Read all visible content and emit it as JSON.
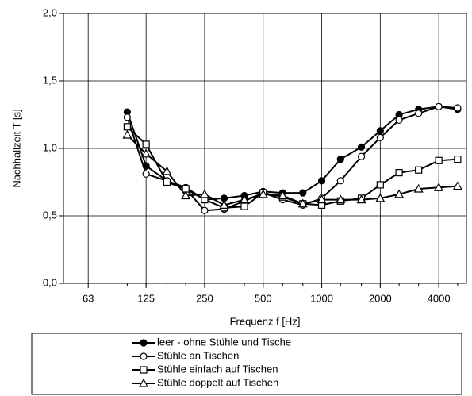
{
  "chart_data": {
    "type": "line",
    "ylabel": "Nachhallzeit T [s]",
    "xlabel": "Frequenz f [Hz]",
    "x": [
      100,
      125,
      160,
      200,
      250,
      315,
      400,
      500,
      630,
      800,
      1000,
      1250,
      1600,
      2000,
      2500,
      3150,
      4000,
      5000
    ],
    "xscale": "log",
    "xlim": [
      47,
      5550
    ],
    "xticks": [
      63,
      125,
      250,
      500,
      1000,
      2000,
      4000
    ],
    "ylim": [
      0,
      2
    ],
    "yticks": [
      {
        "value": 0,
        "label": "0,0"
      },
      {
        "value": 0.5,
        "label": "0,5"
      },
      {
        "value": 1,
        "label": "1,0"
      },
      {
        "value": 1.5,
        "label": "1,5"
      },
      {
        "value": 2,
        "label": "2,0"
      }
    ],
    "grid": true,
    "legend": "bottom",
    "series": [
      {
        "name": "leer - ohne Stühle und Tische",
        "color": "#000000",
        "marker": "circle-filled",
        "values": [
          1.27,
          0.87,
          0.76,
          0.71,
          0.62,
          0.63,
          0.65,
          0.68,
          0.67,
          0.67,
          0.76,
          0.92,
          1.01,
          1.13,
          1.25,
          1.29,
          1.31,
          1.29
        ]
      },
      {
        "name": "Stühle an Tischen",
        "color": "#000000",
        "marker": "circle-open",
        "values": [
          1.23,
          0.81,
          0.76,
          0.7,
          0.54,
          0.55,
          0.61,
          0.67,
          0.62,
          0.58,
          0.63,
          0.76,
          0.94,
          1.08,
          1.21,
          1.26,
          1.31,
          1.3
        ]
      },
      {
        "name": "Stühle einfach auf Tischen",
        "color": "#000000",
        "marker": "square",
        "values": [
          1.16,
          1.03,
          0.75,
          0.7,
          0.62,
          0.56,
          0.57,
          0.67,
          0.64,
          0.59,
          0.58,
          0.61,
          0.63,
          0.73,
          0.82,
          0.84,
          0.91,
          0.92
        ]
      },
      {
        "name": "Stühle doppelt auf Tischen",
        "color": "#000000",
        "marker": "triangle",
        "values": [
          1.1,
          0.96,
          0.83,
          0.65,
          0.66,
          0.58,
          0.62,
          0.66,
          0.65,
          0.59,
          0.62,
          0.62,
          0.62,
          0.63,
          0.66,
          0.7,
          0.71,
          0.72
        ]
      }
    ]
  }
}
